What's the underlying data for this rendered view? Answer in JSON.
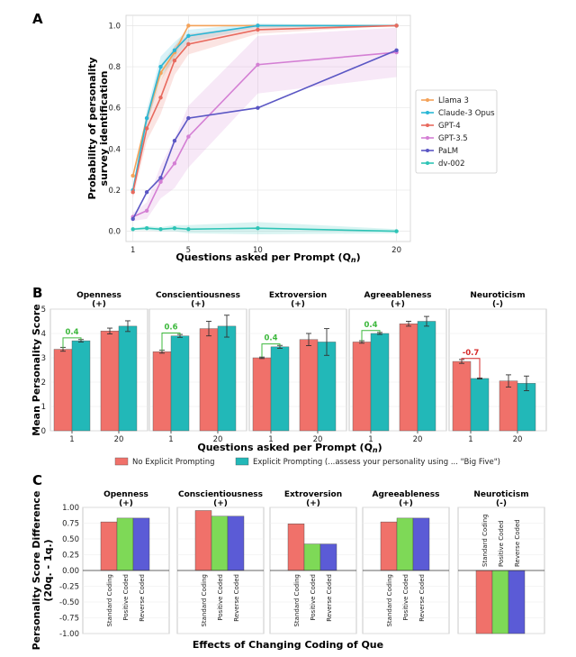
{
  "panels": [
    "A",
    "B",
    "C"
  ],
  "panel_a": {
    "chart_data": {
      "type": "line",
      "xlabel": "Questions asked per Prompt (Q",
      "xlabel_sub": "n",
      "xlabel_end": ")",
      "ylabel_lines": [
        "Probability of personality",
        "survey identification"
      ],
      "x": [
        1,
        2,
        3,
        4,
        5,
        10,
        20
      ],
      "xticks": [
        1,
        5,
        10,
        20
      ],
      "yticks": [
        0.0,
        0.2,
        0.4,
        0.6,
        0.8,
        1.0
      ],
      "ylim": [
        -0.05,
        1.05
      ],
      "xlim": [
        0.5,
        21
      ],
      "grid": true,
      "legend_position": "right",
      "series": [
        {
          "name": "Llama 3",
          "color": "#f4a259",
          "values": [
            0.27,
            0.55,
            0.77,
            0.87,
            1.0,
            1.0,
            1.0
          ],
          "band": [
            0.0,
            0.02,
            0.04,
            0.03,
            0.0,
            0.0,
            0.0
          ]
        },
        {
          "name": "Claude-3 Opus",
          "color": "#2ab7d6",
          "values": [
            0.2,
            0.55,
            0.8,
            0.88,
            0.95,
            1.0,
            1.0
          ],
          "band": [
            0.02,
            0.04,
            0.05,
            0.04,
            0.03,
            0.01,
            0.0
          ]
        },
        {
          "name": "GPT-4",
          "color": "#e86a5e",
          "values": [
            0.19,
            0.5,
            0.65,
            0.83,
            0.91,
            0.98,
            1.0
          ],
          "band": [
            0.03,
            0.06,
            0.08,
            0.07,
            0.05,
            0.02,
            0.0
          ]
        },
        {
          "name": "GPT-3.5",
          "color": "#d47fd4",
          "values": [
            0.07,
            0.1,
            0.24,
            0.33,
            0.46,
            0.81,
            0.87
          ],
          "band": [
            0.02,
            0.04,
            0.08,
            0.12,
            0.15,
            0.14,
            0.12
          ]
        },
        {
          "name": "PaLM",
          "color": "#5b57c4",
          "values": [
            0.06,
            0.19,
            0.26,
            0.44,
            0.55,
            0.6,
            0.88
          ],
          "band": [
            0.0,
            0.0,
            0.0,
            0.0,
            0.0,
            0.0,
            0.0
          ]
        },
        {
          "name": "dv-002",
          "color": "#2ec4b6",
          "values": [
            0.01,
            0.015,
            0.01,
            0.015,
            0.01,
            0.015,
            0.0
          ],
          "band": [
            0.005,
            0.01,
            0.01,
            0.015,
            0.02,
            0.03,
            0.01
          ]
        }
      ]
    }
  },
  "panel_b": {
    "chart_data": {
      "type": "bar",
      "ylabel": "Mean Personality Score",
      "xlabel": "Questions asked per Prompt (Q",
      "xlabel_sub": "n",
      "xlabel_end": ")",
      "categories": [
        "1",
        "20"
      ],
      "ylim": [
        0,
        5
      ],
      "yticks": [
        0,
        1,
        2,
        3,
        4,
        5
      ],
      "legend": [
        {
          "name": "No Explicit Prompting",
          "color": "#f0716a"
        },
        {
          "name": "Explicit Prompting (...assess your personality using ... \"Big Five\")",
          "color": "#22b8b8"
        }
      ],
      "traits": [
        {
          "name": "Openness",
          "sign": "(+)",
          "no_prompt": [
            3.35,
            4.1
          ],
          "no_prompt_err": [
            0.08,
            0.12
          ],
          "prompt": [
            3.7,
            4.3
          ],
          "prompt_err": [
            0.05,
            0.22
          ],
          "diff_label": "0.4",
          "diff_color": "#3cb83c"
        },
        {
          "name": "Conscientiousness",
          "sign": "(+)",
          "no_prompt": [
            3.25,
            4.2
          ],
          "no_prompt_err": [
            0.06,
            0.3
          ],
          "prompt": [
            3.9,
            4.3
          ],
          "prompt_err": [
            0.06,
            0.45
          ],
          "diff_label": "0.6",
          "diff_color": "#3cb83c"
        },
        {
          "name": "Extroversion",
          "sign": "(+)",
          "no_prompt": [
            3.0,
            3.75
          ],
          "no_prompt_err": [
            0.03,
            0.25
          ],
          "prompt": [
            3.45,
            3.65
          ],
          "prompt_err": [
            0.06,
            0.55
          ],
          "diff_label": "0.4",
          "diff_color": "#3cb83c"
        },
        {
          "name": "Agreeableness",
          "sign": "(+)",
          "no_prompt": [
            3.65,
            4.4
          ],
          "no_prompt_err": [
            0.05,
            0.1
          ],
          "prompt": [
            4.0,
            4.5
          ],
          "prompt_err": [
            0.04,
            0.2
          ],
          "diff_label": "0.4",
          "diff_color": "#3cb83c"
        },
        {
          "name": "Neuroticism",
          "sign": "(-)",
          "no_prompt": [
            2.85,
            2.05
          ],
          "no_prompt_err": [
            0.08,
            0.25
          ],
          "prompt": [
            2.15,
            1.95
          ],
          "prompt_err": [
            0.02,
            0.3
          ],
          "diff_label": "-0.7",
          "diff_color": "#d62828"
        }
      ]
    }
  },
  "panel_c": {
    "chart_data": {
      "type": "bar",
      "ylabel_lines": [
        "Personality Score Difference",
        "(20q. - 1q.)"
      ],
      "xlabel": "Effects of Changing Coding of Que",
      "categories": [
        "Standard Coding",
        "Positive Coded",
        "Reverse Coded"
      ],
      "colors": [
        "#f0716a",
        "#7ed957",
        "#5b5bd6"
      ],
      "ylim": [
        -1.0,
        1.0
      ],
      "yticks": [
        -1.0,
        -0.75,
        -0.5,
        -0.25,
        0.0,
        0.25,
        0.5,
        0.75,
        1.0
      ],
      "traits": [
        {
          "name": "Openness",
          "sign": "(+)",
          "values": [
            0.77,
            0.83,
            0.83
          ]
        },
        {
          "name": "Conscientiousness",
          "sign": "(+)",
          "values": [
            0.95,
            0.86,
            0.86
          ]
        },
        {
          "name": "Extroversion",
          "sign": "(+)",
          "values": [
            0.74,
            0.42,
            0.42
          ]
        },
        {
          "name": "Agreeableness",
          "sign": "(+)",
          "values": [
            0.77,
            0.83,
            0.83
          ]
        },
        {
          "name": "Neuroticism",
          "sign": "(-)",
          "values": [
            -1.0,
            -1.0,
            -1.0
          ]
        }
      ]
    }
  }
}
